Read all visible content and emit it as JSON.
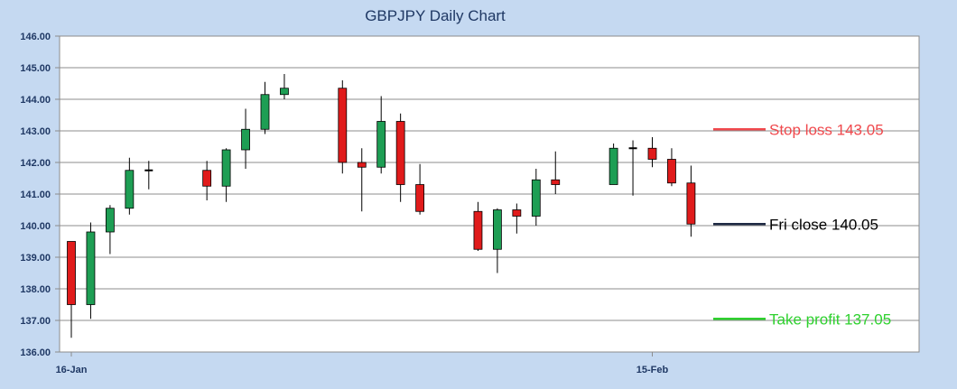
{
  "chart_data": {
    "type": "candlestick",
    "title": "GBPJPY Daily Chart",
    "ylim": [
      136.0,
      146.0
    ],
    "y_ticks": [
      "136.00",
      "137.00",
      "138.00",
      "139.00",
      "140.00",
      "141.00",
      "142.00",
      "143.00",
      "144.00",
      "145.00",
      "146.00"
    ],
    "x_tick_labels": [
      {
        "label": "16-Jan",
        "day": 0
      },
      {
        "label": "15-Feb",
        "day": 30
      }
    ],
    "x_range_days": [
      0,
      45
    ],
    "grid": true,
    "colors": {
      "up": "#1e9e54",
      "down": "#e01b1b",
      "doji": "#000000"
    },
    "candles": [
      {
        "day": 0,
        "open": 139.5,
        "high": 139.5,
        "low": 136.45,
        "close": 137.5
      },
      {
        "day": 1,
        "open": 137.5,
        "high": 140.1,
        "low": 137.05,
        "close": 139.8
      },
      {
        "day": 2,
        "open": 139.8,
        "high": 140.65,
        "low": 139.1,
        "close": 140.55
      },
      {
        "day": 3,
        "open": 140.55,
        "high": 142.15,
        "low": 140.35,
        "close": 141.75
      },
      {
        "day": 4,
        "open": 141.75,
        "high": 142.05,
        "low": 141.15,
        "close": 141.75
      },
      {
        "day": 7,
        "open": 141.75,
        "high": 142.05,
        "low": 140.8,
        "close": 141.25
      },
      {
        "day": 8,
        "open": 141.25,
        "high": 142.45,
        "low": 140.75,
        "close": 142.4
      },
      {
        "day": 9,
        "open": 142.4,
        "high": 143.7,
        "low": 141.8,
        "close": 143.05
      },
      {
        "day": 10,
        "open": 143.05,
        "high": 144.55,
        "low": 142.9,
        "close": 144.15
      },
      {
        "day": 11,
        "open": 144.15,
        "high": 144.8,
        "low": 144.0,
        "close": 144.35
      },
      {
        "day": 14,
        "open": 144.35,
        "high": 144.6,
        "low": 141.65,
        "close": 142.0
      },
      {
        "day": 15,
        "open": 142.0,
        "high": 142.45,
        "low": 140.45,
        "close": 141.85
      },
      {
        "day": 16,
        "open": 141.85,
        "high": 144.1,
        "low": 141.65,
        "close": 143.3
      },
      {
        "day": 17,
        "open": 143.3,
        "high": 143.55,
        "low": 140.75,
        "close": 141.3
      },
      {
        "day": 18,
        "open": 141.3,
        "high": 141.95,
        "low": 140.35,
        "close": 140.45
      },
      {
        "day": 21,
        "open": 140.45,
        "high": 140.75,
        "low": 139.2,
        "close": 139.25
      },
      {
        "day": 22,
        "open": 139.25,
        "high": 140.55,
        "low": 138.5,
        "close": 140.5
      },
      {
        "day": 23,
        "open": 140.5,
        "high": 140.7,
        "low": 139.75,
        "close": 140.3
      },
      {
        "day": 24,
        "open": 140.3,
        "high": 141.8,
        "low": 140.0,
        "close": 141.45
      },
      {
        "day": 25,
        "open": 141.45,
        "high": 142.35,
        "low": 141.0,
        "close": 141.3
      },
      {
        "day": 28,
        "open": 141.3,
        "high": 142.6,
        "low": 141.3,
        "close": 142.45
      },
      {
        "day": 29,
        "open": 142.45,
        "high": 142.7,
        "low": 140.95,
        "close": 142.45
      },
      {
        "day": 30,
        "open": 142.45,
        "high": 142.8,
        "low": 141.85,
        "close": 142.1
      },
      {
        "day": 31,
        "open": 142.1,
        "high": 142.45,
        "low": 141.25,
        "close": 141.35
      },
      {
        "day": 32,
        "open": 141.35,
        "high": 141.9,
        "low": 139.65,
        "close": 140.05
      }
    ],
    "annotations": [
      {
        "label": "Stop loss 143.05",
        "value": 143.05,
        "color": "#f0494d"
      },
      {
        "label": "Fri close 140.05",
        "value": 140.05,
        "color": "#000000",
        "line_color": "#1f2a44"
      },
      {
        "label": "Take profit 137.05",
        "value": 137.05,
        "color": "#2ed12e"
      }
    ]
  }
}
